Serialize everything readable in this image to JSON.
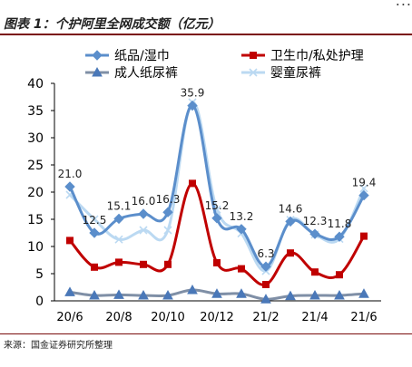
{
  "header": {
    "top_fragment": "...",
    "figure_title": "图表 1：个护阿里全网成交额（亿元）",
    "bottom_fragment": "..."
  },
  "source": "来源：国金证券研究所整理",
  "colors": {
    "paper": "#5B8ECB",
    "sanitary": "#C00000",
    "adult": "#7F8FA6",
    "baby": "#BBD9F2",
    "header_rule": "#7A0C0C"
  },
  "chart_data": {
    "type": "line",
    "categories": [
      "20/6",
      "20/7",
      "20/8",
      "20/9",
      "20/10",
      "20/11",
      "20/12",
      "21/1",
      "21/2",
      "21/3",
      "21/4",
      "21/5",
      "21/6"
    ],
    "x_tick_labels": [
      "20/6",
      "20/8",
      "20/10",
      "20/12",
      "21/2",
      "21/4",
      "21/6"
    ],
    "ylim": [
      0,
      40
    ],
    "y_ticks": [
      0,
      5,
      10,
      15,
      20,
      25,
      30,
      35,
      40
    ],
    "grid": false,
    "legend_position": "top",
    "series": [
      {
        "name": "纸品/湿巾",
        "marker": "diamond",
        "values": [
          21.0,
          12.5,
          15.1,
          16.0,
          16.3,
          35.9,
          15.2,
          13.2,
          6.3,
          14.6,
          12.3,
          11.8,
          19.4
        ]
      },
      {
        "name": "卫生巾/私处护理",
        "marker": "square",
        "values": [
          11.1,
          6.2,
          7.1,
          6.7,
          6.7,
          21.6,
          7.0,
          5.9,
          3.0,
          8.8,
          5.3,
          4.8,
          11.9
        ]
      },
      {
        "name": "成人纸尿裤",
        "marker": "triangle",
        "values": [
          1.6,
          1.0,
          1.1,
          1.0,
          1.0,
          2.0,
          1.3,
          1.3,
          0.3,
          0.9,
          1.0,
          1.0,
          1.3
        ]
      },
      {
        "name": "婴童尿裤",
        "marker": "x",
        "values": [
          19.5,
          15.0,
          11.3,
          13.0,
          13.0,
          36.5,
          16.8,
          12.4,
          5.5,
          14.9,
          12.2,
          11.4,
          20.7
        ]
      }
    ],
    "data_labels": [
      {
        "x": "20/6",
        "text": "21.0"
      },
      {
        "x": "20/7",
        "text": "12.5"
      },
      {
        "x": "20/8",
        "text": "15.1"
      },
      {
        "x": "20/9",
        "text": "16.0"
      },
      {
        "x": "20/10",
        "text": "16.3"
      },
      {
        "x": "20/11",
        "text": "35.9"
      },
      {
        "x": "20/12",
        "text": "15.2"
      },
      {
        "x": "21/1",
        "text": "13.2"
      },
      {
        "x": "21/2",
        "text": "6.3"
      },
      {
        "x": "21/3",
        "text": "14.6"
      },
      {
        "x": "21/4",
        "text": "12.3"
      },
      {
        "x": "21/5",
        "text": "11.8"
      },
      {
        "x": "21/6",
        "text": "19.4"
      }
    ]
  }
}
